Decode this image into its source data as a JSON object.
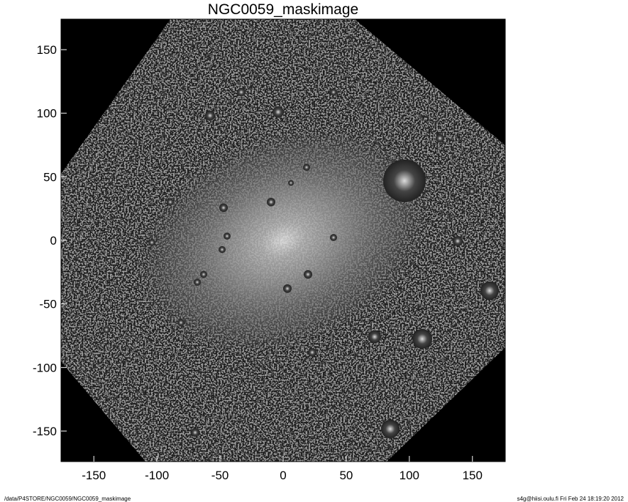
{
  "chart_data": {
    "type": "heatmap",
    "title": "NGC0059_maskimage",
    "xlabel": "",
    "ylabel": "",
    "xlim": [
      -176,
      176
    ],
    "ylim": [
      -174,
      174
    ],
    "xticks": [
      -150,
      -100,
      -50,
      0,
      50,
      100,
      150
    ],
    "yticks": [
      -150,
      -100,
      -50,
      0,
      50,
      100,
      150
    ],
    "colormap": "grayscale",
    "grid": false,
    "background": "#000000"
  },
  "footer": {
    "path": "/data/P4STORE/NGC0059/NGC0059_maskimage",
    "info": "s4g@hiisi.oulu.fi  Fri Feb 24 18:19:20 2012"
  }
}
